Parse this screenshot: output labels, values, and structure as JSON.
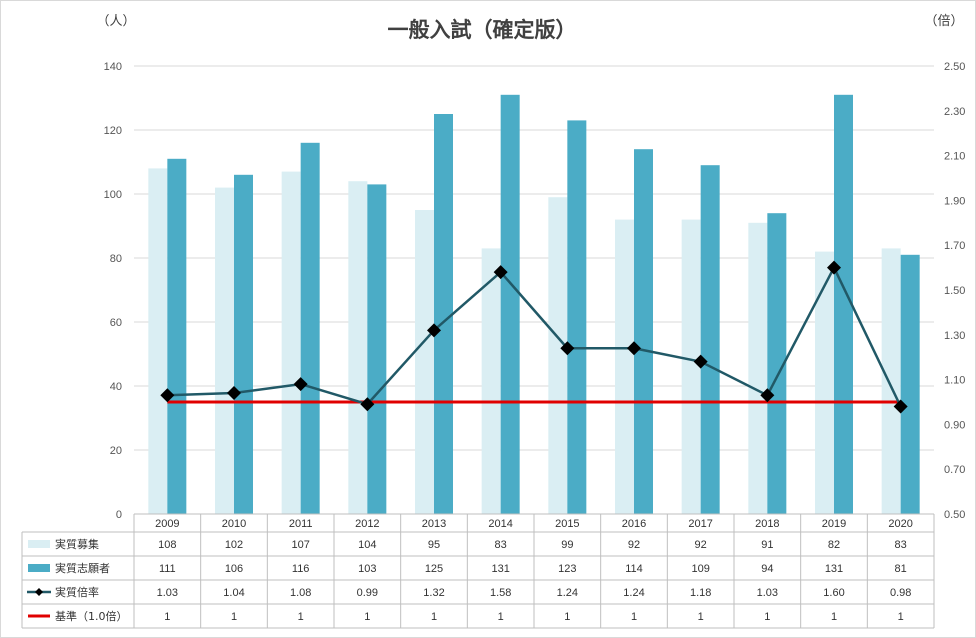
{
  "chart_data": {
    "type": "bar",
    "title": "一般入試（確定版）",
    "ylabel": "（人）",
    "y2label": "（倍）",
    "ylim": [
      0,
      140
    ],
    "y2lim": [
      0.5,
      2.5
    ],
    "yticks": [
      0,
      20,
      40,
      60,
      80,
      100,
      120,
      140
    ],
    "y2ticks": [
      "0.50",
      "0.70",
      "0.90",
      "1.10",
      "1.30",
      "1.50",
      "1.70",
      "1.90",
      "2.10",
      "2.30",
      "2.50"
    ],
    "grid": true,
    "legend": "data-table",
    "categories": [
      "2009",
      "2010",
      "2011",
      "2012",
      "2013",
      "2014",
      "2015",
      "2016",
      "2017",
      "2018",
      "2019",
      "2020"
    ],
    "series": [
      {
        "name": "実質募集",
        "type": "bar",
        "axis": "left",
        "color": "#daeef3",
        "values": [
          108,
          102,
          107,
          104,
          95,
          83,
          99,
          92,
          92,
          91,
          82,
          83
        ],
        "labels": [
          "108",
          "102",
          "107",
          "104",
          "95",
          "83",
          "99",
          "92",
          "92",
          "91",
          "82",
          "83"
        ]
      },
      {
        "name": "実質志願者",
        "type": "bar",
        "axis": "left",
        "color": "#4bacc6",
        "values": [
          111,
          106,
          116,
          103,
          125,
          131,
          123,
          114,
          109,
          94,
          131,
          81
        ],
        "labels": [
          "111",
          "106",
          "116",
          "103",
          "125",
          "131",
          "123",
          "114",
          "109",
          "94",
          "131",
          "81"
        ]
      },
      {
        "name": "実質倍率",
        "type": "line",
        "axis": "right",
        "color": "#215967",
        "values": [
          1.03,
          1.04,
          1.08,
          0.99,
          1.32,
          1.58,
          1.24,
          1.24,
          1.18,
          1.03,
          1.6,
          0.98
        ],
        "labels": [
          "1.03",
          "1.04",
          "1.08",
          "0.99",
          "1.32",
          "1.58",
          "1.24",
          "1.24",
          "1.18",
          "1.03",
          "1.60",
          "0.98"
        ]
      },
      {
        "name": "基準（1.0倍）",
        "type": "line",
        "axis": "right",
        "color": "#e00000",
        "values": [
          1,
          1,
          1,
          1,
          1,
          1,
          1,
          1,
          1,
          1,
          1,
          1
        ],
        "labels": [
          "1",
          "1",
          "1",
          "1",
          "1",
          "1",
          "1",
          "1",
          "1",
          "1",
          "1",
          "1"
        ]
      }
    ]
  }
}
